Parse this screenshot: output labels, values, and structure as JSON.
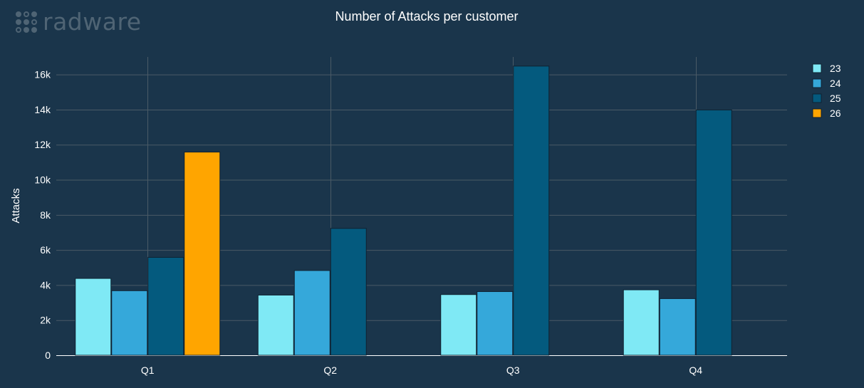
{
  "brand": {
    "name": "radware"
  },
  "colors": {
    "background": "#1a354b",
    "grid": "#4a5a66",
    "text": "#ffffff",
    "axis": "#ffffff",
    "bar_stroke": "#0f2131"
  },
  "chart_data": {
    "type": "bar",
    "title": "Number of Attacks per customer",
    "xlabel": "",
    "ylabel": "Attacks",
    "categories": [
      "Q1",
      "Q2",
      "Q3",
      "Q4"
    ],
    "ylim": [
      0,
      17000
    ],
    "yticks": [
      0,
      2000,
      4000,
      6000,
      8000,
      10000,
      12000,
      14000,
      16000
    ],
    "ytick_labels": [
      "0",
      "2k",
      "4k",
      "6k",
      "8k",
      "10k",
      "12k",
      "14k",
      "16k"
    ],
    "grid": true,
    "legend_position": "top-right",
    "series": [
      {
        "name": "23",
        "color": "#7fe9f5",
        "values": [
          4400,
          3450,
          3480,
          3750
        ]
      },
      {
        "name": "24",
        "color": "#35a8da",
        "values": [
          3700,
          4850,
          3650,
          3250
        ]
      },
      {
        "name": "25",
        "color": "#045a7e",
        "values": [
          5600,
          7250,
          16500,
          14000
        ]
      },
      {
        "name": "26",
        "color": "#ffa500",
        "values": [
          11600,
          null,
          null,
          null
        ]
      }
    ]
  }
}
